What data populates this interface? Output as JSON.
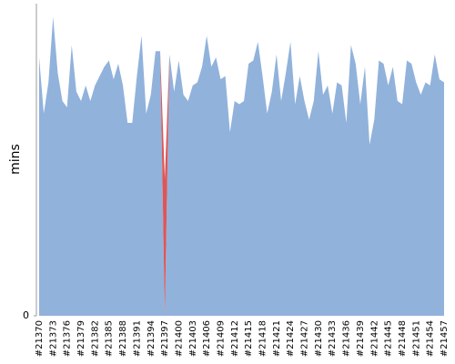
{
  "chart_data": {
    "type": "area",
    "ylabel": "mins",
    "categories": [
      "#21370",
      null,
      null,
      "#21373",
      null,
      null,
      "#21376",
      null,
      null,
      "#21379",
      null,
      null,
      "#21382",
      null,
      null,
      "#21385",
      null,
      null,
      "#21388",
      null,
      null,
      "#21391",
      null,
      null,
      "#21394",
      null,
      null,
      "#21397",
      null,
      null,
      "#21400",
      null,
      null,
      "#21403",
      null,
      null,
      "#21406",
      null,
      null,
      "#21409",
      null,
      null,
      "#21412",
      null,
      null,
      "#21415",
      null,
      null,
      "#21418",
      null,
      null,
      "#21421",
      null,
      null,
      "#21424",
      null,
      null,
      "#21427",
      null,
      null,
      "#21430",
      null,
      null,
      "#21433",
      null,
      null,
      "#21436",
      null,
      null,
      "#21439",
      null,
      null,
      "#21442",
      null,
      null,
      "#21445",
      null,
      null,
      "#21448",
      null,
      null,
      "#21451",
      null,
      null,
      "#21454",
      null,
      null,
      "#21457"
    ],
    "series": [
      {
        "color": "#91b2db",
        "values": [
          8.3,
          6.5,
          7.5,
          9.6,
          7.8,
          6.9,
          6.7,
          8.7,
          7.2,
          6.9,
          7.4,
          6.9,
          7.4,
          7.7,
          8.0,
          8.2,
          7.6,
          8.1,
          7.4,
          6.2,
          6.2,
          7.7,
          9.0,
          6.5,
          7.1,
          8.5,
          8.5,
          0,
          8.4,
          7.2,
          8.2,
          7.1,
          6.9,
          7.4,
          7.5,
          8.0,
          9.0,
          8.0,
          8.3,
          7.6,
          7.7,
          5.9,
          6.9,
          6.8,
          6.9,
          8.1,
          8.2,
          8.8,
          7.7,
          6.5,
          7.2,
          8.4,
          6.9,
          7.8,
          8.8,
          6.8,
          7.7,
          6.9,
          6.3,
          6.9,
          8.5,
          7.1,
          7.4,
          6.5,
          7.5,
          7.4,
          6.2,
          8.7,
          8.1,
          6.8,
          8.0,
          5.5,
          6.3,
          8.2,
          8.1,
          7.4,
          8.0,
          6.9,
          6.8,
          8.2,
          8.1,
          7.5,
          7.1,
          7.5,
          7.4,
          8.4,
          7.6,
          7.5
        ]
      },
      {
        "color": "#e05555",
        "values": [
          0,
          0,
          0,
          0,
          0,
          0,
          0,
          0,
          0,
          0,
          0,
          0,
          0,
          0,
          0,
          0,
          0,
          0,
          0,
          0,
          0,
          0,
          0,
          0,
          0,
          0,
          0,
          4.4,
          0,
          0,
          0,
          0,
          0,
          0,
          0,
          0,
          0,
          0,
          0,
          0,
          0,
          0,
          0,
          0,
          0,
          0,
          0,
          0,
          0,
          0,
          0,
          0,
          0,
          0,
          0,
          0,
          0,
          0,
          0,
          0,
          0,
          0,
          0,
          0,
          0,
          0,
          0,
          0,
          0,
          0,
          0,
          0,
          0,
          0,
          0,
          0,
          0,
          0,
          0,
          0,
          0,
          0,
          0,
          0,
          0,
          0,
          0,
          0
        ]
      }
    ],
    "ylim": [
      0,
      10
    ],
    "yticks": [
      0
    ]
  }
}
